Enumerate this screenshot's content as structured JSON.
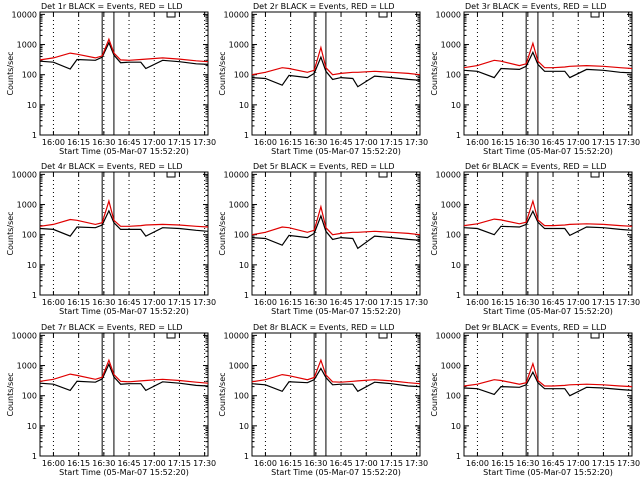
{
  "colors": {
    "events": "#000000",
    "lld": "#e00000",
    "background": "#ffffff"
  },
  "chart_data": [
    {
      "type": "line",
      "title": "Det 1r BLACK = Events, RED = LLD",
      "xlabel": "Start Time (05-Mar-07 15:52:20)",
      "ylabel": "Counts/sec",
      "x_ticks": [
        "16:00",
        "16:15",
        "16:30",
        "16:45",
        "17:00",
        "17:15",
        "17:30"
      ],
      "x_range": [
        "15:52",
        "17:32"
      ],
      "y_scale": "log",
      "ylim": [
        1,
        12000
      ],
      "y_ticks": [
        "1",
        "10",
        "100",
        "1000",
        "10000"
      ],
      "series": [
        {
          "color": "#000000",
          "x": [
            "15:52",
            "16:00",
            "16:10",
            "16:14",
            "16:25",
            "16:29",
            "16:33",
            "16:36",
            "16:40",
            "16:45",
            "16:52",
            "16:55",
            "17:05",
            "17:15",
            "17:25",
            "17:32"
          ],
          "y": [
            280,
            260,
            155,
            320,
            300,
            380,
            1150,
            450,
            250,
            260,
            260,
            160,
            300,
            270,
            230,
            220
          ]
        },
        {
          "color": "#e00000",
          "x": [
            "15:52",
            "16:00",
            "16:10",
            "16:14",
            "16:25",
            "16:29",
            "16:33",
            "16:36",
            "16:40",
            "16:45",
            "16:52",
            "16:55",
            "17:05",
            "17:15",
            "17:25",
            "17:32"
          ],
          "y": [
            310,
            360,
            520,
            480,
            360,
            420,
            1500,
            520,
            310,
            300,
            320,
            330,
            360,
            330,
            290,
            270
          ]
        }
      ]
    },
    {
      "type": "line",
      "title": "Det 2r BLACK = Events, RED = LLD",
      "xlabel": "Start Time (05-Mar-07 15:52:20)",
      "ylabel": "Counts/sec",
      "x_ticks": [
        "16:00",
        "16:15",
        "16:30",
        "16:45",
        "17:00",
        "17:15",
        "17:30"
      ],
      "x_range": [
        "15:52",
        "17:32"
      ],
      "y_scale": "log",
      "ylim": [
        1,
        12000
      ],
      "y_ticks": [
        "1",
        "10",
        "100",
        "1000",
        "10000"
      ],
      "series": [
        {
          "color": "#000000",
          "x": [
            "15:52",
            "16:00",
            "16:10",
            "16:14",
            "16:25",
            "16:29",
            "16:33",
            "16:36",
            "16:40",
            "16:45",
            "16:52",
            "16:55",
            "17:05",
            "17:15",
            "17:25",
            "17:32"
          ],
          "y": [
            80,
            75,
            45,
            95,
            80,
            110,
            380,
            130,
            70,
            80,
            75,
            40,
            90,
            80,
            70,
            65
          ]
        },
        {
          "color": "#e00000",
          "x": [
            "15:52",
            "16:00",
            "16:10",
            "16:14",
            "16:25",
            "16:29",
            "16:33",
            "16:36",
            "16:40",
            "16:45",
            "16:52",
            "16:55",
            "17:05",
            "17:15",
            "17:25",
            "17:32"
          ],
          "y": [
            100,
            120,
            170,
            160,
            120,
            140,
            800,
            170,
            100,
            110,
            120,
            120,
            130,
            120,
            110,
            100
          ]
        }
      ]
    },
    {
      "type": "line",
      "title": "Det 3r BLACK = Events, RED = LLD",
      "xlabel": "Start Time (05-Mar-07 15:52:20)",
      "ylabel": "Counts/sec",
      "x_ticks": [
        "16:00",
        "16:15",
        "16:30",
        "16:45",
        "17:00",
        "17:15",
        "17:30"
      ],
      "x_range": [
        "15:52",
        "17:32"
      ],
      "y_scale": "log",
      "ylim": [
        1,
        12000
      ],
      "y_ticks": [
        "1",
        "10",
        "100",
        "1000",
        "10000"
      ],
      "series": [
        {
          "color": "#000000",
          "x": [
            "15:52",
            "16:00",
            "16:10",
            "16:14",
            "16:25",
            "16:29",
            "16:33",
            "16:36",
            "16:40",
            "16:45",
            "16:52",
            "16:55",
            "17:05",
            "17:15",
            "17:25",
            "17:32"
          ],
          "y": [
            140,
            130,
            80,
            160,
            150,
            190,
            550,
            220,
            130,
            130,
            130,
            80,
            150,
            140,
            120,
            115
          ]
        },
        {
          "color": "#e00000",
          "x": [
            "15:52",
            "16:00",
            "16:10",
            "16:14",
            "16:25",
            "16:29",
            "16:33",
            "16:36",
            "16:40",
            "16:45",
            "16:52",
            "16:55",
            "17:05",
            "17:15",
            "17:25",
            "17:32"
          ],
          "y": [
            170,
            200,
            300,
            280,
            200,
            230,
            1100,
            280,
            170,
            170,
            180,
            190,
            200,
            190,
            170,
            160
          ]
        }
      ]
    },
    {
      "type": "line",
      "title": "Det 4r BLACK = Events, RED = LLD",
      "xlabel": "Start Time (05-Mar-07 15:52:20)",
      "ylabel": "Counts/sec",
      "x_ticks": [
        "16:00",
        "16:15",
        "16:30",
        "16:45",
        "17:00",
        "17:15",
        "17:30"
      ],
      "x_range": [
        "15:52",
        "17:32"
      ],
      "y_scale": "log",
      "ylim": [
        1,
        12000
      ],
      "y_ticks": [
        "1",
        "10",
        "100",
        "1000",
        "10000"
      ],
      "series": [
        {
          "color": "#000000",
          "x": [
            "15:52",
            "16:00",
            "16:10",
            "16:14",
            "16:25",
            "16:29",
            "16:33",
            "16:36",
            "16:40",
            "16:45",
            "16:52",
            "16:55",
            "17:05",
            "17:15",
            "17:25",
            "17:32"
          ],
          "y": [
            160,
            150,
            90,
            180,
            170,
            210,
            620,
            250,
            150,
            150,
            150,
            90,
            170,
            160,
            140,
            130
          ]
        },
        {
          "color": "#e00000",
          "x": [
            "15:52",
            "16:00",
            "16:10",
            "16:14",
            "16:25",
            "16:29",
            "16:33",
            "16:36",
            "16:40",
            "16:45",
            "16:52",
            "16:55",
            "17:05",
            "17:15",
            "17:25",
            "17:32"
          ],
          "y": [
            190,
            220,
            320,
            300,
            220,
            250,
            1300,
            300,
            190,
            190,
            200,
            210,
            220,
            210,
            190,
            180
          ]
        }
      ]
    },
    {
      "type": "line",
      "title": "Det 5r BLACK = Events, RED = LLD",
      "xlabel": "Start Time (05-Mar-07 15:52:20)",
      "ylabel": "Counts/sec",
      "x_ticks": [
        "16:00",
        "16:15",
        "16:30",
        "16:45",
        "17:00",
        "17:15",
        "17:30"
      ],
      "x_range": [
        "15:52",
        "17:32"
      ],
      "y_scale": "log",
      "ylim": [
        1,
        12000
      ],
      "y_ticks": [
        "1",
        "10",
        "100",
        "1000",
        "10000"
      ],
      "series": [
        {
          "color": "#000000",
          "x": [
            "15:52",
            "16:00",
            "16:10",
            "16:14",
            "16:25",
            "16:29",
            "16:33",
            "16:36",
            "16:40",
            "16:45",
            "16:52",
            "16:55",
            "17:05",
            "17:15",
            "17:25",
            "17:32"
          ],
          "y": [
            80,
            75,
            45,
            95,
            80,
            110,
            420,
            130,
            70,
            80,
            75,
            35,
            90,
            80,
            70,
            65
          ]
        },
        {
          "color": "#e00000",
          "x": [
            "15:52",
            "16:00",
            "16:10",
            "16:14",
            "16:25",
            "16:29",
            "16:33",
            "16:36",
            "16:40",
            "16:45",
            "16:52",
            "16:55",
            "17:05",
            "17:15",
            "17:25",
            "17:32"
          ],
          "y": [
            100,
            120,
            180,
            170,
            120,
            140,
            850,
            170,
            100,
            110,
            120,
            120,
            130,
            120,
            110,
            100
          ]
        }
      ]
    },
    {
      "type": "line",
      "title": "Det 6r BLACK = Events, RED = LLD",
      "xlabel": "Start Time (05-Mar-07 15:52:20)",
      "ylabel": "Counts/sec",
      "x_ticks": [
        "16:00",
        "16:15",
        "16:30",
        "16:45",
        "17:00",
        "17:15",
        "17:30"
      ],
      "x_range": [
        "15:52",
        "17:32"
      ],
      "y_scale": "log",
      "ylim": [
        1,
        12000
      ],
      "y_ticks": [
        "1",
        "10",
        "100",
        "1000",
        "10000"
      ],
      "series": [
        {
          "color": "#000000",
          "x": [
            "15:52",
            "16:00",
            "16:10",
            "16:14",
            "16:25",
            "16:29",
            "16:33",
            "16:36",
            "16:40",
            "16:45",
            "16:52",
            "16:55",
            "17:05",
            "17:15",
            "17:25",
            "17:32"
          ],
          "y": [
            170,
            160,
            100,
            190,
            180,
            220,
            600,
            260,
            160,
            160,
            160,
            95,
            180,
            170,
            150,
            140
          ]
        },
        {
          "color": "#e00000",
          "x": [
            "15:52",
            "16:00",
            "16:10",
            "16:14",
            "16:25",
            "16:29",
            "16:33",
            "16:36",
            "16:40",
            "16:45",
            "16:52",
            "16:55",
            "17:05",
            "17:15",
            "17:25",
            "17:32"
          ],
          "y": [
            200,
            230,
            330,
            310,
            230,
            260,
            1300,
            310,
            200,
            200,
            210,
            220,
            230,
            220,
            200,
            190
          ]
        }
      ]
    },
    {
      "type": "line",
      "title": "Det 7r BLACK = Events, RED = LLD",
      "xlabel": "Start Time (05-Mar-07 15:52:20)",
      "ylabel": "Counts/sec",
      "x_ticks": [
        "16:00",
        "16:15",
        "16:30",
        "16:45",
        "17:00",
        "17:15",
        "17:30"
      ],
      "x_range": [
        "15:52",
        "17:32"
      ],
      "y_scale": "log",
      "ylim": [
        1,
        12000
      ],
      "y_ticks": [
        "1",
        "10",
        "100",
        "1000",
        "10000"
      ],
      "series": [
        {
          "color": "#000000",
          "x": [
            "15:52",
            "16:00",
            "16:10",
            "16:14",
            "16:25",
            "16:29",
            "16:33",
            "16:36",
            "16:40",
            "16:45",
            "16:52",
            "16:55",
            "17:05",
            "17:15",
            "17:25",
            "17:32"
          ],
          "y": [
            260,
            240,
            150,
            300,
            280,
            360,
            1100,
            420,
            240,
            250,
            250,
            150,
            290,
            260,
            220,
            210
          ]
        },
        {
          "color": "#e00000",
          "x": [
            "15:52",
            "16:00",
            "16:10",
            "16:14",
            "16:25",
            "16:29",
            "16:33",
            "16:36",
            "16:40",
            "16:45",
            "16:52",
            "16:55",
            "17:05",
            "17:15",
            "17:25",
            "17:32"
          ],
          "y": [
            300,
            350,
            520,
            470,
            350,
            410,
            1500,
            500,
            300,
            290,
            310,
            320,
            350,
            320,
            280,
            260
          ]
        }
      ]
    },
    {
      "type": "line",
      "title": "Det 8r BLACK = Events, RED = LLD",
      "xlabel": "Start Time (05-Mar-07 15:52:20)",
      "ylabel": "Counts/sec",
      "x_ticks": [
        "16:00",
        "16:15",
        "16:30",
        "16:45",
        "17:00",
        "17:15",
        "17:30"
      ],
      "x_range": [
        "15:52",
        "17:32"
      ],
      "y_scale": "log",
      "ylim": [
        1,
        12000
      ],
      "y_ticks": [
        "1",
        "10",
        "100",
        "1000",
        "10000"
      ],
      "series": [
        {
          "color": "#000000",
          "x": [
            "15:52",
            "16:00",
            "16:10",
            "16:14",
            "16:25",
            "16:29",
            "16:33",
            "16:36",
            "16:40",
            "16:45",
            "16:52",
            "16:55",
            "17:05",
            "17:15",
            "17:25",
            "17:32"
          ],
          "y": [
            250,
            230,
            140,
            290,
            270,
            340,
            800,
            400,
            230,
            240,
            240,
            140,
            280,
            250,
            210,
            200
          ]
        },
        {
          "color": "#e00000",
          "x": [
            "15:52",
            "16:00",
            "16:10",
            "16:14",
            "16:25",
            "16:29",
            "16:33",
            "16:36",
            "16:40",
            "16:45",
            "16:52",
            "16:55",
            "17:05",
            "17:15",
            "17:25",
            "17:32"
          ],
          "y": [
            290,
            340,
            500,
            460,
            340,
            400,
            1500,
            490,
            290,
            280,
            300,
            310,
            340,
            310,
            270,
            250
          ]
        }
      ]
    },
    {
      "type": "line",
      "title": "Det 9r BLACK = Events, RED = LLD",
      "xlabel": "Start Time (05-Mar-07 15:52:20)",
      "ylabel": "Counts/sec",
      "x_ticks": [
        "16:00",
        "16:15",
        "16:30",
        "16:45",
        "17:00",
        "17:15",
        "17:30"
      ],
      "x_range": [
        "15:52",
        "17:32"
      ],
      "y_scale": "log",
      "ylim": [
        1,
        12000
      ],
      "y_ticks": [
        "1",
        "10",
        "100",
        "1000",
        "10000"
      ],
      "series": [
        {
          "color": "#000000",
          "x": [
            "15:52",
            "16:00",
            "16:10",
            "16:14",
            "16:25",
            "16:29",
            "16:33",
            "16:36",
            "16:40",
            "16:45",
            "16:52",
            "16:55",
            "17:05",
            "17:15",
            "17:25",
            "17:32"
          ],
          "y": [
            180,
            170,
            110,
            200,
            190,
            230,
            600,
            270,
            170,
            170,
            170,
            100,
            190,
            180,
            160,
            150
          ]
        },
        {
          "color": "#e00000",
          "x": [
            "15:52",
            "16:00",
            "16:10",
            "16:14",
            "16:25",
            "16:29",
            "16:33",
            "16:36",
            "16:40",
            "16:45",
            "16:52",
            "16:55",
            "17:05",
            "17:15",
            "17:25",
            "17:32"
          ],
          "y": [
            210,
            240,
            340,
            320,
            240,
            270,
            1150,
            320,
            210,
            210,
            220,
            230,
            240,
            230,
            210,
            200
          ]
        }
      ]
    }
  ]
}
